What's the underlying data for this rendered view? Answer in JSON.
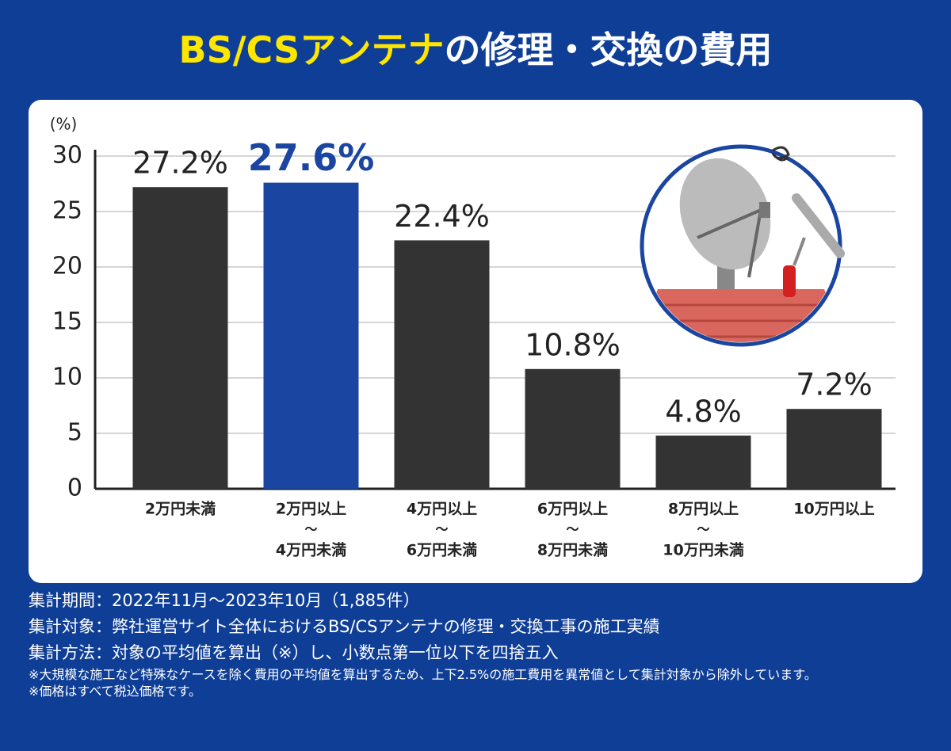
{
  "chart_data": {
    "type": "bar",
    "title_parts": [
      "BS/CSアンテナ",
      "の修理・交換の費用"
    ],
    "y_label": "(%)",
    "categories": [
      [
        "2万円未満"
      ],
      [
        "2万円以上",
        "～",
        "4万円未満"
      ],
      [
        "4万円以上",
        "～",
        "6万円未満"
      ],
      [
        "6万円以上",
        "～",
        "8万円未満"
      ],
      [
        "8万円以上",
        "～",
        "10万円未満"
      ],
      [
        "10万円以上"
      ]
    ],
    "values": [
      27.2,
      27.6,
      22.4,
      10.8,
      4.8,
      7.2
    ],
    "value_labels": [
      "27.2%",
      "27.6%",
      "22.4%",
      "10.8%",
      "4.8%",
      "7.2%"
    ],
    "colors": [
      "#333333",
      "#1a45a0",
      "#333333",
      "#333333",
      "#333333",
      "#333333"
    ],
    "ylim": [
      0,
      30
    ],
    "yticks": [
      0,
      5,
      10,
      15,
      20,
      25,
      30
    ],
    "grid": true
  },
  "notes": [
    "集計期間：2022年11月～2023年10月（1,885件）",
    "集計対象：弊社運営サイト全体におけるBS/CSアンテナの修理・交換工事の施工実績",
    "集計方法：対象の平均値を算出（※）し、小数点第一位以下を四捨五入"
  ],
  "small_notes": [
    "※大規模な施工など特殊なケースを除く費用の平均値を算出するため、上下2.5%の施工費用を異常値として集計対象から除外しています。",
    "※価格はすべて税込価格です。"
  ]
}
